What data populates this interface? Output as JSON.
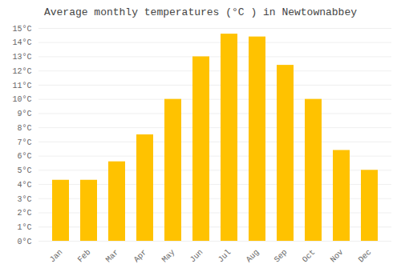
{
  "chart_data": {
    "type": "bar",
    "title": "Average monthly temperatures (°C ) in Newtownabbey",
    "categories": [
      "Jan",
      "Feb",
      "Mar",
      "Apr",
      "May",
      "Jun",
      "Jul",
      "Aug",
      "Sep",
      "Oct",
      "Nov",
      "Dec"
    ],
    "values": [
      4.3,
      4.3,
      5.6,
      7.5,
      10.0,
      13.0,
      14.6,
      14.4,
      12.4,
      10.0,
      6.4,
      5.0
    ],
    "color": "#FFC200",
    "ylim": [
      0,
      15
    ],
    "yticks": [
      {
        "value": 0,
        "label": "0°C"
      },
      {
        "value": 1,
        "label": "1°C"
      },
      {
        "value": 2,
        "label": "2°C"
      },
      {
        "value": 3,
        "label": "3°C"
      },
      {
        "value": 4,
        "label": "4°C"
      },
      {
        "value": 5,
        "label": "5°C"
      },
      {
        "value": 6,
        "label": "6°C"
      },
      {
        "value": 7,
        "label": "7°C"
      },
      {
        "value": 8,
        "label": "8°C"
      },
      {
        "value": 9,
        "label": "9°C"
      },
      {
        "value": 10,
        "label": "10°C"
      },
      {
        "value": 11,
        "label": "11°C"
      },
      {
        "value": 12,
        "label": "12°C"
      },
      {
        "value": 13,
        "label": "13°C"
      },
      {
        "value": 14,
        "label": "14°C"
      },
      {
        "value": 15,
        "label": "15°C"
      }
    ],
    "grid": true
  }
}
